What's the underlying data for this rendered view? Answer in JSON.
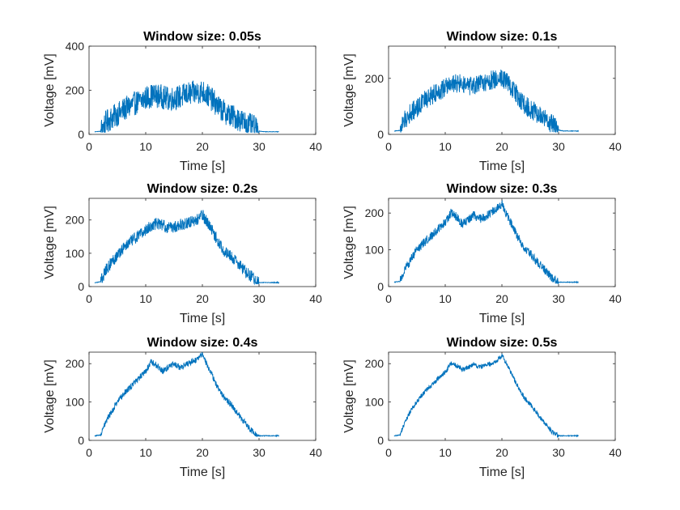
{
  "chart_data": [
    {
      "type": "line",
      "title": "Window size: 0.05s",
      "xlabel": "Time [s]",
      "ylabel": "Voltage [mV]",
      "xlim": [
        0,
        40
      ],
      "ylim": [
        0,
        400
      ],
      "xticks": [
        "0",
        "10",
        "20",
        "30",
        "40"
      ],
      "yticks": [
        "0",
        "200",
        "400"
      ],
      "color": "#0072BD",
      "x": [
        1,
        2,
        3,
        4,
        5,
        6,
        7,
        8,
        9,
        10,
        11,
        12,
        13,
        14,
        15,
        16,
        17,
        18,
        19,
        20,
        21,
        22,
        23,
        24,
        25,
        26,
        27,
        28,
        29,
        30,
        31,
        32,
        33,
        33.5
      ],
      "y": [
        12,
        14,
        55,
        75,
        90,
        110,
        125,
        140,
        150,
        165,
        175,
        175,
        170,
        160,
        165,
        170,
        180,
        185,
        190,
        195,
        175,
        150,
        120,
        100,
        85,
        75,
        60,
        45,
        35,
        15,
        12,
        12,
        12,
        12
      ],
      "noise": 55
    },
    {
      "type": "line",
      "title": "Window size: 0.1s",
      "xlabel": "Time [s]",
      "ylabel": "Voltage [mV]",
      "xlim": [
        0,
        40
      ],
      "ylim": [
        0,
        315
      ],
      "xticks": [
        "0",
        "10",
        "20",
        "30",
        "40"
      ],
      "yticks": [
        "0",
        "200"
      ],
      "color": "#0072BD",
      "x": [
        1,
        2,
        3,
        4,
        5,
        6,
        7,
        8,
        9,
        10,
        11,
        12,
        13,
        14,
        15,
        16,
        17,
        18,
        19,
        20,
        21,
        22,
        23,
        24,
        25,
        26,
        27,
        28,
        29,
        30,
        31,
        32,
        33,
        33.5
      ],
      "y": [
        12,
        14,
        55,
        80,
        95,
        115,
        130,
        145,
        155,
        170,
        180,
        182,
        178,
        170,
        172,
        178,
        185,
        192,
        198,
        205,
        185,
        160,
        130,
        105,
        90,
        78,
        62,
        48,
        35,
        15,
        12,
        12,
        12,
        12
      ],
      "noise": 35
    },
    {
      "type": "line",
      "title": "Window size: 0.2s",
      "xlabel": "Time [s]",
      "ylabel": "Voltage [mV]",
      "xlim": [
        0,
        40
      ],
      "ylim": [
        0,
        265
      ],
      "xticks": [
        "0",
        "10",
        "20",
        "30",
        "40"
      ],
      "yticks": [
        "0",
        "100",
        "200"
      ],
      "color": "#0072BD",
      "x": [
        1,
        2,
        3,
        4,
        5,
        6,
        7,
        8,
        9,
        10,
        11,
        12,
        13,
        14,
        15,
        16,
        17,
        18,
        19,
        20,
        21,
        22,
        23,
        24,
        25,
        26,
        27,
        28,
        29,
        30,
        31,
        32,
        33,
        33.5
      ],
      "y": [
        12,
        14,
        50,
        75,
        95,
        115,
        130,
        145,
        155,
        170,
        182,
        190,
        185,
        175,
        180,
        185,
        190,
        195,
        200,
        215,
        190,
        160,
        130,
        105,
        90,
        75,
        55,
        40,
        25,
        12,
        12,
        12,
        12,
        12
      ],
      "noise": 18
    },
    {
      "type": "line",
      "title": "Window size: 0.3s",
      "xlabel": "Time [s]",
      "ylabel": "Voltage [mV]",
      "xlim": [
        0,
        40
      ],
      "ylim": [
        0,
        240
      ],
      "xticks": [
        "0",
        "10",
        "20",
        "30",
        "40"
      ],
      "yticks": [
        "0",
        "100",
        "200"
      ],
      "color": "#0072BD",
      "x": [
        1,
        2,
        3,
        4,
        5,
        6,
        7,
        8,
        9,
        10,
        11,
        12,
        13,
        14,
        15,
        16,
        17,
        18,
        19,
        20,
        21,
        22,
        23,
        24,
        25,
        26,
        27,
        28,
        29,
        30,
        31,
        32,
        33,
        33.5
      ],
      "y": [
        12,
        14,
        50,
        75,
        100,
        115,
        130,
        145,
        160,
        175,
        200,
        190,
        170,
        180,
        195,
        185,
        190,
        200,
        210,
        225,
        190,
        160,
        130,
        105,
        90,
        70,
        55,
        38,
        22,
        12,
        12,
        12,
        12,
        12
      ],
      "noise": 12
    },
    {
      "type": "line",
      "title": "Window size: 0.4s",
      "xlabel": "Time [s]",
      "ylabel": "Voltage [mV]",
      "xlim": [
        0,
        40
      ],
      "ylim": [
        0,
        230
      ],
      "xticks": [
        "0",
        "10",
        "20",
        "30",
        "40"
      ],
      "yticks": [
        "0",
        "100",
        "200"
      ],
      "color": "#0072BD",
      "x": [
        1,
        2,
        3,
        4,
        5,
        6,
        7,
        8,
        9,
        10,
        11,
        12,
        13,
        14,
        15,
        16,
        17,
        18,
        19,
        20,
        21,
        22,
        23,
        24,
        25,
        26,
        27,
        28,
        29,
        30,
        31,
        32,
        33,
        33.5
      ],
      "y": [
        12,
        14,
        50,
        75,
        100,
        120,
        135,
        150,
        165,
        180,
        205,
        195,
        180,
        190,
        200,
        190,
        195,
        205,
        210,
        225,
        190,
        160,
        130,
        110,
        95,
        75,
        55,
        38,
        20,
        12,
        12,
        12,
        12,
        12
      ],
      "noise": 8
    },
    {
      "type": "line",
      "title": "Window size: 0.5s",
      "xlabel": "Time [s]",
      "ylabel": "Voltage [mV]",
      "xlim": [
        0,
        40
      ],
      "ylim": [
        0,
        230
      ],
      "xticks": [
        "0",
        "10",
        "20",
        "30",
        "40"
      ],
      "yticks": [
        "0",
        "100",
        "200"
      ],
      "color": "#0072BD",
      "x": [
        1,
        2,
        3,
        4,
        5,
        6,
        7,
        8,
        9,
        10,
        11,
        12,
        13,
        14,
        15,
        16,
        17,
        18,
        19,
        20,
        21,
        22,
        23,
        24,
        25,
        26,
        27,
        28,
        29,
        30,
        31,
        32,
        33,
        33.5
      ],
      "y": [
        12,
        14,
        50,
        80,
        100,
        120,
        135,
        150,
        165,
        178,
        200,
        195,
        185,
        190,
        198,
        190,
        195,
        200,
        205,
        222,
        195,
        165,
        135,
        110,
        95,
        75,
        55,
        38,
        20,
        12,
        12,
        12,
        12,
        12
      ],
      "noise": 6
    }
  ]
}
